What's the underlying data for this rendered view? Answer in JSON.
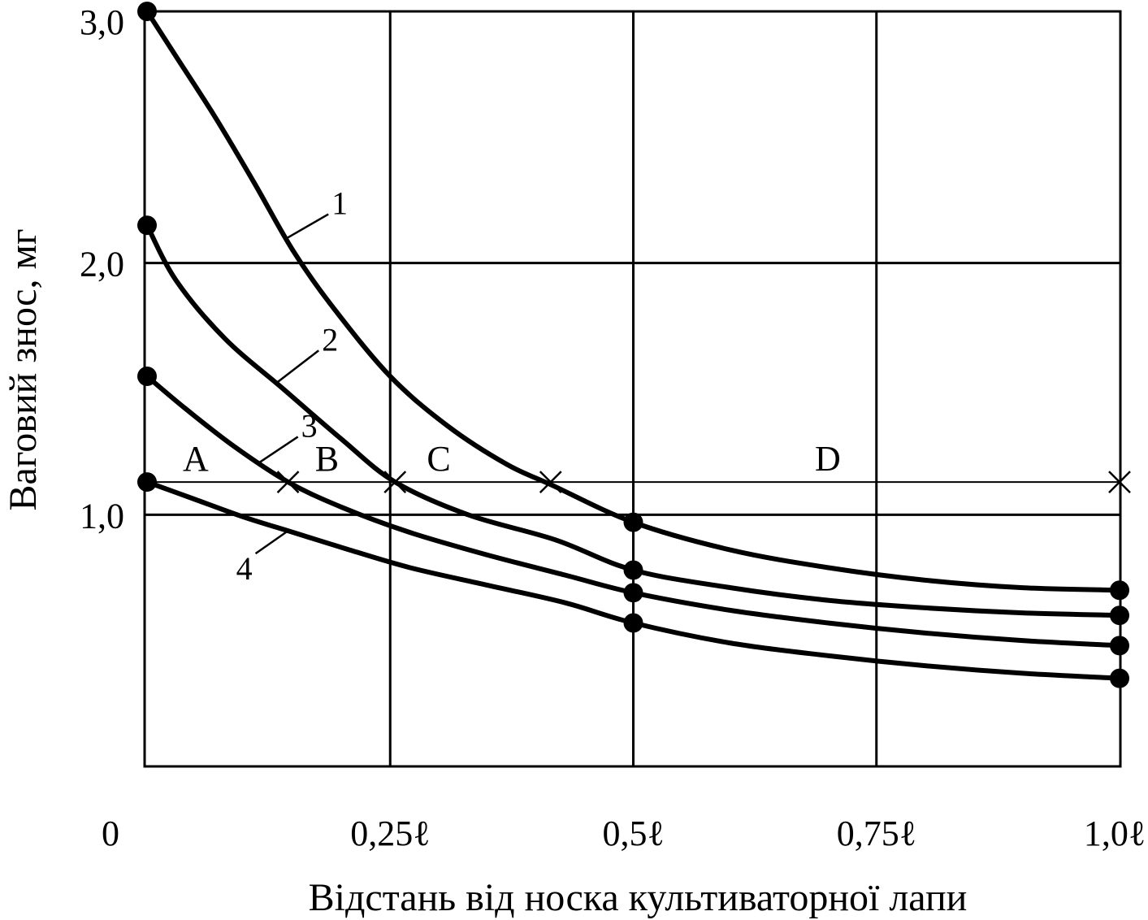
{
  "chart_data": {
    "type": "line",
    "xlabel": "Відстань від носка культиваторної лапи",
    "ylabel": "Ваговий знос, мг",
    "xlim": [
      0,
      1.0
    ],
    "ylim": [
      0,
      3.0
    ],
    "grid": true,
    "x_ticks": [
      {
        "value": 0,
        "label": "0"
      },
      {
        "value": 0.25,
        "label": "0,25ℓ"
      },
      {
        "value": 0.5,
        "label": "0,5ℓ"
      },
      {
        "value": 0.75,
        "label": "0,75ℓ"
      },
      {
        "value": 1.0,
        "label": "1,0ℓ"
      }
    ],
    "y_ticks": [
      {
        "value": 1.0,
        "label": "1,0"
      },
      {
        "value": 2.0,
        "label": "2,0"
      },
      {
        "value": 3.0,
        "label": "3,0"
      }
    ],
    "series": [
      {
        "label": "1",
        "x": [
          0,
          0.03,
          0.07,
          0.11,
          0.15,
          0.19,
          0.25,
          0.31,
          0.37,
          0.415,
          0.5,
          0.6,
          0.7,
          0.8,
          0.9,
          1.0
        ],
        "y": [
          3.0,
          2.82,
          2.58,
          2.32,
          2.05,
          1.83,
          1.55,
          1.35,
          1.2,
          1.12,
          0.97,
          0.86,
          0.79,
          0.74,
          0.71,
          0.7
        ],
        "markers": [
          0,
          10,
          15
        ]
      },
      {
        "label": "2",
        "x": [
          0,
          0.03,
          0.08,
          0.14,
          0.2,
          0.255,
          0.33,
          0.42,
          0.5,
          0.6,
          0.7,
          0.8,
          0.9,
          1.0
        ],
        "y": [
          2.15,
          1.93,
          1.7,
          1.5,
          1.3,
          1.13,
          1.0,
          0.9,
          0.78,
          0.71,
          0.66,
          0.63,
          0.61,
          0.6
        ],
        "markers": [
          0,
          8,
          13
        ]
      },
      {
        "label": "3",
        "x": [
          0,
          0.04,
          0.09,
          0.145,
          0.2,
          0.27,
          0.35,
          0.43,
          0.5,
          0.6,
          0.7,
          0.8,
          0.9,
          1.0
        ],
        "y": [
          1.55,
          1.42,
          1.27,
          1.13,
          1.03,
          0.93,
          0.84,
          0.76,
          0.69,
          0.62,
          0.57,
          0.53,
          0.5,
          0.48
        ],
        "markers": [
          0,
          8,
          13
        ]
      },
      {
        "label": "4",
        "x": [
          0,
          0.05,
          0.1,
          0.15,
          0.2,
          0.27,
          0.35,
          0.43,
          0.5,
          0.6,
          0.7,
          0.8,
          0.9,
          1.0
        ],
        "y": [
          1.13,
          1.06,
          0.99,
          0.93,
          0.87,
          0.79,
          0.72,
          0.65,
          0.57,
          0.49,
          0.44,
          0.4,
          0.37,
          0.35
        ],
        "markers": [
          0,
          8,
          13
        ]
      }
    ],
    "reference_line": {
      "y": 1.13,
      "crosses_x": [
        0.145,
        0.255,
        0.415,
        1.0
      ]
    },
    "zones": [
      {
        "label": "A",
        "x": 0.05
      },
      {
        "label": "B",
        "x": 0.185
      },
      {
        "label": "C",
        "x": 0.3
      },
      {
        "label": "D",
        "x": 0.7
      }
    ]
  }
}
